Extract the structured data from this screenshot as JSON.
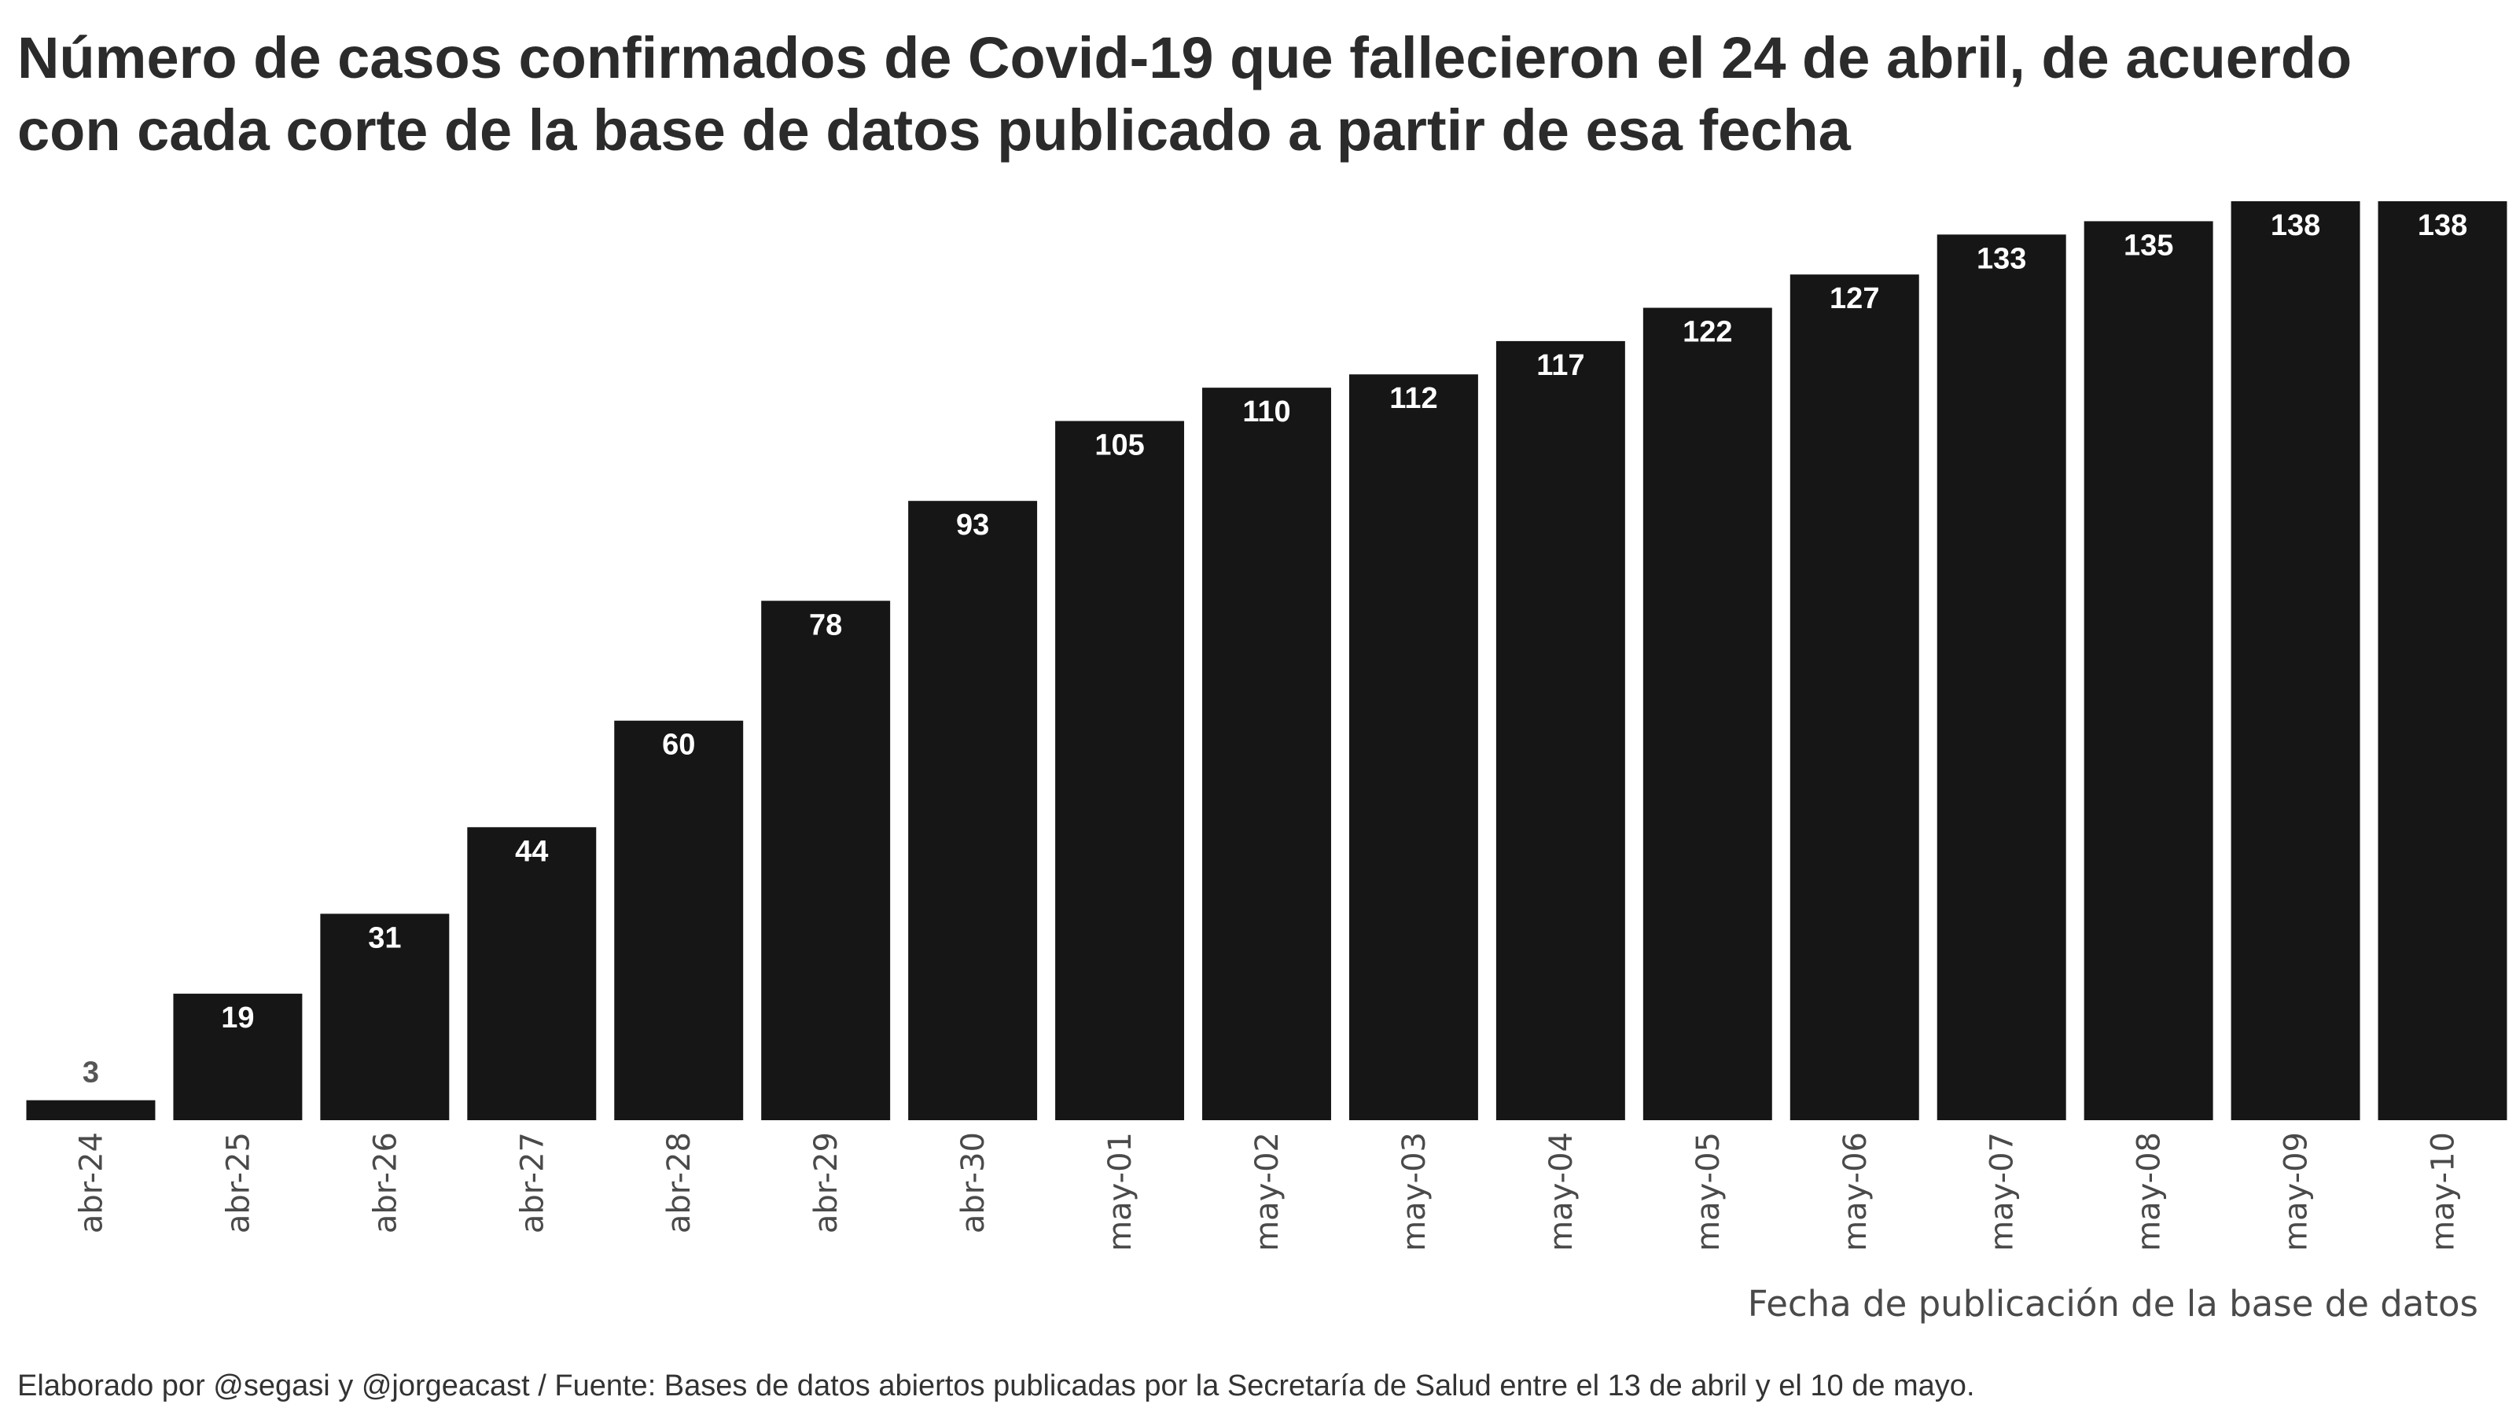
{
  "chart_data": {
    "type": "bar",
    "title": "Número de casos confirmados de Covid-19 que fallecieron el 24 de abril, de acuerdo con cada corte de la base de datos publicado a partir de esa fecha",
    "xlabel": "Fecha de publicación de la base de datos",
    "ylabel": "",
    "caption": "Elaborado por @segasi y @jorgeacast / Fuente: Bases de datos abiertos publicadas por la Secretaría de Salud entre el 13 de abril y el 10 de mayo.",
    "categories": [
      "abr-24",
      "abr-25",
      "abr-26",
      "abr-27",
      "abr-28",
      "abr-29",
      "abr-30",
      "may-01",
      "may-02",
      "may-03",
      "may-04",
      "may-05",
      "may-06",
      "may-07",
      "may-08",
      "may-09",
      "may-10"
    ],
    "values": [
      3,
      19,
      31,
      44,
      60,
      78,
      93,
      105,
      110,
      112,
      117,
      122,
      127,
      133,
      135,
      138,
      138
    ],
    "ylim": [
      0,
      138
    ],
    "grid": false,
    "legend": "none",
    "bar_color": "#161616",
    "label_color_inside": "#ffffff",
    "label_color_outside": "#555555"
  }
}
